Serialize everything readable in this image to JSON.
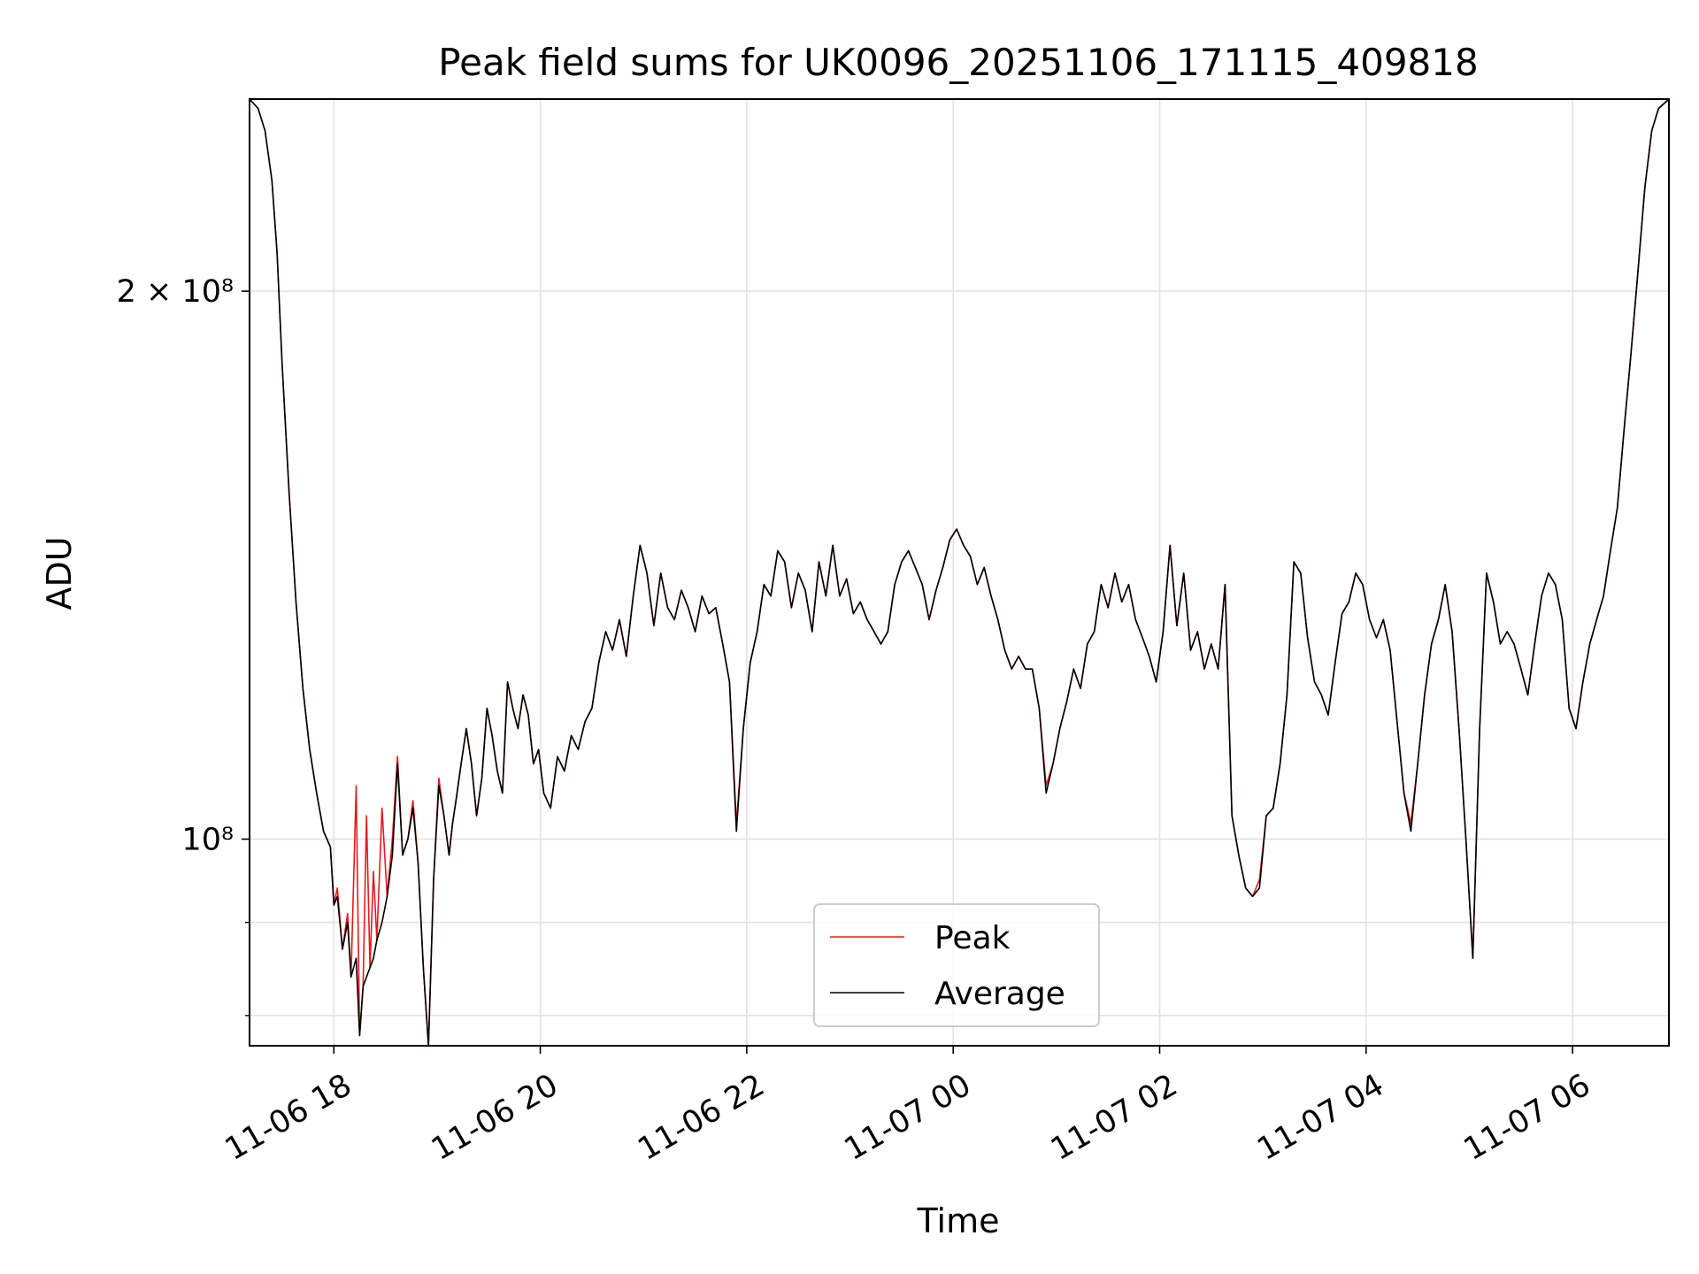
{
  "chart_data": {
    "type": "line",
    "title": "Peak field sums for UK0096_20251106_171115_409818",
    "xlabel": "Time",
    "ylabel": "ADU",
    "yscale": "log",
    "ylim": [
      77000000,
      255000000
    ],
    "xlim": [
      "2025-11-06 17:11",
      "2025-11-07 06:56"
    ],
    "grid": true,
    "legend_position": "lower center",
    "x_ticks": [
      {
        "t": "2025-11-06 18:00",
        "label": "11-06 18"
      },
      {
        "t": "2025-11-06 20:00",
        "label": "11-06 20"
      },
      {
        "t": "2025-11-06 22:00",
        "label": "11-06 22"
      },
      {
        "t": "2025-11-07 00:00",
        "label": "11-07 00"
      },
      {
        "t": "2025-11-07 02:00",
        "label": "11-07 02"
      },
      {
        "t": "2025-11-07 04:00",
        "label": "11-07 04"
      },
      {
        "t": "2025-11-07 06:00",
        "label": "11-07 06"
      }
    ],
    "y_ticks": [
      {
        "value": 200000000,
        "label": "2 × 10⁸"
      },
      {
        "value": 100000000,
        "label": "10⁸"
      }
    ],
    "y_minor_ticks": [
      80000000,
      90000000
    ],
    "x": [
      "2025-11-06 17:11",
      "2025-11-06 17:16",
      "2025-11-06 17:20",
      "2025-11-06 17:24",
      "2025-11-06 17:27",
      "2025-11-06 17:30",
      "2025-11-06 17:34",
      "2025-11-06 17:38",
      "2025-11-06 17:42",
      "2025-11-06 17:46",
      "2025-11-06 17:50",
      "2025-11-06 17:54",
      "2025-11-06 17:58",
      "2025-11-06 18:00",
      "2025-11-06 18:02",
      "2025-11-06 18:05",
      "2025-11-06 18:08",
      "2025-11-06 18:10",
      "2025-11-06 18:13",
      "2025-11-06 18:15",
      "2025-11-06 18:17",
      "2025-11-06 18:19",
      "2025-11-06 18:21",
      "2025-11-06 18:23",
      "2025-11-06 18:25",
      "2025-11-06 18:28",
      "2025-11-06 18:31",
      "2025-11-06 18:34",
      "2025-11-06 18:37",
      "2025-11-06 18:40",
      "2025-11-06 18:43",
      "2025-11-06 18:46",
      "2025-11-06 18:49",
      "2025-11-06 18:52",
      "2025-11-06 18:55",
      "2025-11-06 18:58",
      "2025-11-06 19:01",
      "2025-11-06 19:04",
      "2025-11-06 19:07",
      "2025-11-06 19:09",
      "2025-11-06 19:11",
      "2025-11-06 19:14",
      "2025-11-06 19:17",
      "2025-11-06 19:20",
      "2025-11-06 19:23",
      "2025-11-06 19:26",
      "2025-11-06 19:29",
      "2025-11-06 19:32",
      "2025-11-06 19:35",
      "2025-11-06 19:38",
      "2025-11-06 19:41",
      "2025-11-06 19:44",
      "2025-11-06 19:47",
      "2025-11-06 19:50",
      "2025-11-06 19:53",
      "2025-11-06 19:56",
      "2025-11-06 19:59",
      "2025-11-06 20:02",
      "2025-11-06 20:06",
      "2025-11-06 20:10",
      "2025-11-06 20:14",
      "2025-11-06 20:18",
      "2025-11-06 20:22",
      "2025-11-06 20:26",
      "2025-11-06 20:30",
      "2025-11-06 20:34",
      "2025-11-06 20:38",
      "2025-11-06 20:42",
      "2025-11-06 20:46",
      "2025-11-06 20:50",
      "2025-11-06 20:54",
      "2025-11-06 20:58",
      "2025-11-06 21:02",
      "2025-11-06 21:06",
      "2025-11-06 21:10",
      "2025-11-06 21:14",
      "2025-11-06 21:18",
      "2025-11-06 21:22",
      "2025-11-06 21:26",
      "2025-11-06 21:30",
      "2025-11-06 21:34",
      "2025-11-06 21:38",
      "2025-11-06 21:42",
      "2025-11-06 21:46",
      "2025-11-06 21:50",
      "2025-11-06 21:54",
      "2025-11-06 21:58",
      "2025-11-06 22:02",
      "2025-11-06 22:06",
      "2025-11-06 22:10",
      "2025-11-06 22:14",
      "2025-11-06 22:18",
      "2025-11-06 22:22",
      "2025-11-06 22:26",
      "2025-11-06 22:30",
      "2025-11-06 22:34",
      "2025-11-06 22:38",
      "2025-11-06 22:42",
      "2025-11-06 22:46",
      "2025-11-06 22:50",
      "2025-11-06 22:54",
      "2025-11-06 22:58",
      "2025-11-06 23:02",
      "2025-11-06 23:06",
      "2025-11-06 23:10",
      "2025-11-06 23:14",
      "2025-11-06 23:18",
      "2025-11-06 23:22",
      "2025-11-06 23:26",
      "2025-11-06 23:30",
      "2025-11-06 23:34",
      "2025-11-06 23:38",
      "2025-11-06 23:42",
      "2025-11-06 23:46",
      "2025-11-06 23:50",
      "2025-11-06 23:54",
      "2025-11-06 23:58",
      "2025-11-07 00:02",
      "2025-11-07 00:06",
      "2025-11-07 00:10",
      "2025-11-07 00:14",
      "2025-11-07 00:18",
      "2025-11-07 00:22",
      "2025-11-07 00:26",
      "2025-11-07 00:30",
      "2025-11-07 00:34",
      "2025-11-07 00:38",
      "2025-11-07 00:42",
      "2025-11-07 00:46",
      "2025-11-07 00:50",
      "2025-11-07 00:54",
      "2025-11-07 00:58",
      "2025-11-07 01:02",
      "2025-11-07 01:06",
      "2025-11-07 01:10",
      "2025-11-07 01:14",
      "2025-11-07 01:18",
      "2025-11-07 01:22",
      "2025-11-07 01:26",
      "2025-11-07 01:30",
      "2025-11-07 01:34",
      "2025-11-07 01:38",
      "2025-11-07 01:42",
      "2025-11-07 01:46",
      "2025-11-07 01:50",
      "2025-11-07 01:54",
      "2025-11-07 01:58",
      "2025-11-07 02:02",
      "2025-11-07 02:06",
      "2025-11-07 02:10",
      "2025-11-07 02:14",
      "2025-11-07 02:18",
      "2025-11-07 02:22",
      "2025-11-07 02:26",
      "2025-11-07 02:30",
      "2025-11-07 02:34",
      "2025-11-07 02:38",
      "2025-11-07 02:42",
      "2025-11-07 02:46",
      "2025-11-07 02:50",
      "2025-11-07 02:54",
      "2025-11-07 02:58",
      "2025-11-07 03:02",
      "2025-11-07 03:06",
      "2025-11-07 03:10",
      "2025-11-07 03:14",
      "2025-11-07 03:18",
      "2025-11-07 03:22",
      "2025-11-07 03:26",
      "2025-11-07 03:30",
      "2025-11-07 03:34",
      "2025-11-07 03:38",
      "2025-11-07 03:42",
      "2025-11-07 03:46",
      "2025-11-07 03:50",
      "2025-11-07 03:54",
      "2025-11-07 03:58",
      "2025-11-07 04:02",
      "2025-11-07 04:06",
      "2025-11-07 04:10",
      "2025-11-07 04:14",
      "2025-11-07 04:18",
      "2025-11-07 04:22",
      "2025-11-07 04:26",
      "2025-11-07 04:30",
      "2025-11-07 04:34",
      "2025-11-07 04:38",
      "2025-11-07 04:42",
      "2025-11-07 04:46",
      "2025-11-07 04:50",
      "2025-11-07 04:54",
      "2025-11-07 04:58",
      "2025-11-07 05:02",
      "2025-11-07 05:06",
      "2025-11-07 05:10",
      "2025-11-07 05:14",
      "2025-11-07 05:18",
      "2025-11-07 05:22",
      "2025-11-07 05:26",
      "2025-11-07 05:30",
      "2025-11-07 05:34",
      "2025-11-07 05:38",
      "2025-11-07 05:42",
      "2025-11-07 05:46",
      "2025-11-07 05:50",
      "2025-11-07 05:54",
      "2025-11-07 05:58",
      "2025-11-07 06:02",
      "2025-11-07 06:06",
      "2025-11-07 06:10",
      "2025-11-07 06:14",
      "2025-11-07 06:18",
      "2025-11-07 06:22",
      "2025-11-07 06:26",
      "2025-11-07 06:30",
      "2025-11-07 06:34",
      "2025-11-07 06:38",
      "2025-11-07 06:42",
      "2025-11-07 06:46",
      "2025-11-07 06:50",
      "2025-11-07 06:56"
    ],
    "series": [
      {
        "name": "Peak",
        "color": "#e8191c",
        "values": [
          255000000,
          252000000,
          245000000,
          230000000,
          210000000,
          182000000,
          155000000,
          135000000,
          121000000,
          112000000,
          106000000,
          101000000,
          99000000,
          92000000,
          94000000,
          87000000,
          91000000,
          84000000,
          107000000,
          78000000,
          83000000,
          103000000,
          85000000,
          96000000,
          88000000,
          104000000,
          93000000,
          100000000,
          111000000,
          98000000,
          100000000,
          105000000,
          97000000,
          85000000,
          77000000,
          95000000,
          108000000,
          103000000,
          98000000,
          102000000,
          105000000,
          110000000,
          115000000,
          110000000,
          103000000,
          108000000,
          118000000,
          114000000,
          109000000,
          106000000,
          122000000,
          118000000,
          115000000,
          120000000,
          117000000,
          110000000,
          112000000,
          106000000,
          104000000,
          111000000,
          109000000,
          114000000,
          112000000,
          116000000,
          118000000,
          125000000,
          130000000,
          127000000,
          132000000,
          126000000,
          136000000,
          145000000,
          140000000,
          131000000,
          140000000,
          134000000,
          132000000,
          137000000,
          134000000,
          130000000,
          136000000,
          133000000,
          134000000,
          128000000,
          122000000,
          102000000,
          115000000,
          125000000,
          130000000,
          138000000,
          136000000,
          144000000,
          142000000,
          134000000,
          140000000,
          137000000,
          130000000,
          142000000,
          136000000,
          145000000,
          136000000,
          139000000,
          133000000,
          135000000,
          132000000,
          130000000,
          128000000,
          130000000,
          138000000,
          142000000,
          144000000,
          141000000,
          138000000,
          132000000,
          137000000,
          141000000,
          146000000,
          148000000,
          145000000,
          143000000,
          138000000,
          141000000,
          136000000,
          132000000,
          127000000,
          124000000,
          126000000,
          124000000,
          124000000,
          118000000,
          107000000,
          110000000,
          115000000,
          119000000,
          124000000,
          121000000,
          128000000,
          130000000,
          138000000,
          134000000,
          140000000,
          135000000,
          138000000,
          132000000,
          129000000,
          126000000,
          122000000,
          130000000,
          145000000,
          131000000,
          140000000,
          127000000,
          130000000,
          124000000,
          128000000,
          124000000,
          138000000,
          103000000,
          98000000,
          94000000,
          93000000,
          95000000,
          103000000,
          104000000,
          110000000,
          120000000,
          142000000,
          140000000,
          129000000,
          122000000,
          120000000,
          117000000,
          125000000,
          133000000,
          135000000,
          140000000,
          138000000,
          132000000,
          129000000,
          132000000,
          127000000,
          116000000,
          106000000,
          102000000,
          110000000,
          120000000,
          128000000,
          132000000,
          138000000,
          130000000,
          115000000,
          100000000,
          86000000,
          115000000,
          140000000,
          135000000,
          128000000,
          130000000,
          128000000,
          124000000,
          120000000,
          128000000,
          136000000,
          140000000,
          138000000,
          132000000,
          118000000,
          115000000,
          122000000,
          128000000,
          132000000,
          136000000,
          144000000,
          152000000,
          168000000,
          185000000,
          205000000,
          228000000,
          245000000,
          252000000,
          255000000
        ]
      },
      {
        "name": "Average",
        "color": "#000000",
        "values": [
          255000000,
          252000000,
          245000000,
          230000000,
          210000000,
          182000000,
          155000000,
          135000000,
          121000000,
          112000000,
          106000000,
          101000000,
          99000000,
          92000000,
          93000000,
          87000000,
          90000000,
          84000000,
          86000000,
          78000000,
          83000000,
          84000000,
          85000000,
          86000000,
          88000000,
          90000000,
          93000000,
          98000000,
          110000000,
          98000000,
          100000000,
          104000000,
          97000000,
          85000000,
          77000000,
          95000000,
          107000000,
          103000000,
          98000000,
          102000000,
          105000000,
          110000000,
          115000000,
          110000000,
          103000000,
          108000000,
          118000000,
          114000000,
          109000000,
          106000000,
          122000000,
          118000000,
          115000000,
          120000000,
          117000000,
          110000000,
          112000000,
          106000000,
          104000000,
          111000000,
          109000000,
          114000000,
          112000000,
          116000000,
          118000000,
          125000000,
          130000000,
          127000000,
          132000000,
          126000000,
          136000000,
          145000000,
          140000000,
          131000000,
          140000000,
          134000000,
          132000000,
          137000000,
          134000000,
          130000000,
          136000000,
          133000000,
          134000000,
          128000000,
          122000000,
          101000000,
          115000000,
          125000000,
          130000000,
          138000000,
          136000000,
          144000000,
          142000000,
          134000000,
          140000000,
          137000000,
          130000000,
          142000000,
          136000000,
          145000000,
          136000000,
          139000000,
          133000000,
          135000000,
          132000000,
          130000000,
          128000000,
          130000000,
          138000000,
          142000000,
          144000000,
          141000000,
          138000000,
          132000000,
          137000000,
          141000000,
          146000000,
          148000000,
          145000000,
          143000000,
          138000000,
          141000000,
          136000000,
          132000000,
          127000000,
          124000000,
          126000000,
          124000000,
          124000000,
          118000000,
          106000000,
          110000000,
          115000000,
          119000000,
          124000000,
          121000000,
          128000000,
          130000000,
          138000000,
          134000000,
          140000000,
          135000000,
          138000000,
          132000000,
          129000000,
          126000000,
          122000000,
          130000000,
          145000000,
          131000000,
          140000000,
          127000000,
          130000000,
          124000000,
          128000000,
          124000000,
          138000000,
          103000000,
          98000000,
          94000000,
          93000000,
          94000000,
          103000000,
          104000000,
          110000000,
          120000000,
          142000000,
          140000000,
          129000000,
          122000000,
          120000000,
          117000000,
          125000000,
          133000000,
          135000000,
          140000000,
          138000000,
          132000000,
          129000000,
          132000000,
          127000000,
          116000000,
          106000000,
          101000000,
          110000000,
          120000000,
          128000000,
          132000000,
          138000000,
          130000000,
          115000000,
          100000000,
          86000000,
          115000000,
          140000000,
          135000000,
          128000000,
          130000000,
          128000000,
          124000000,
          120000000,
          128000000,
          136000000,
          140000000,
          138000000,
          132000000,
          118000000,
          115000000,
          122000000,
          128000000,
          132000000,
          136000000,
          144000000,
          152000000,
          168000000,
          185000000,
          205000000,
          228000000,
          245000000,
          252000000,
          255000000
        ]
      }
    ]
  }
}
